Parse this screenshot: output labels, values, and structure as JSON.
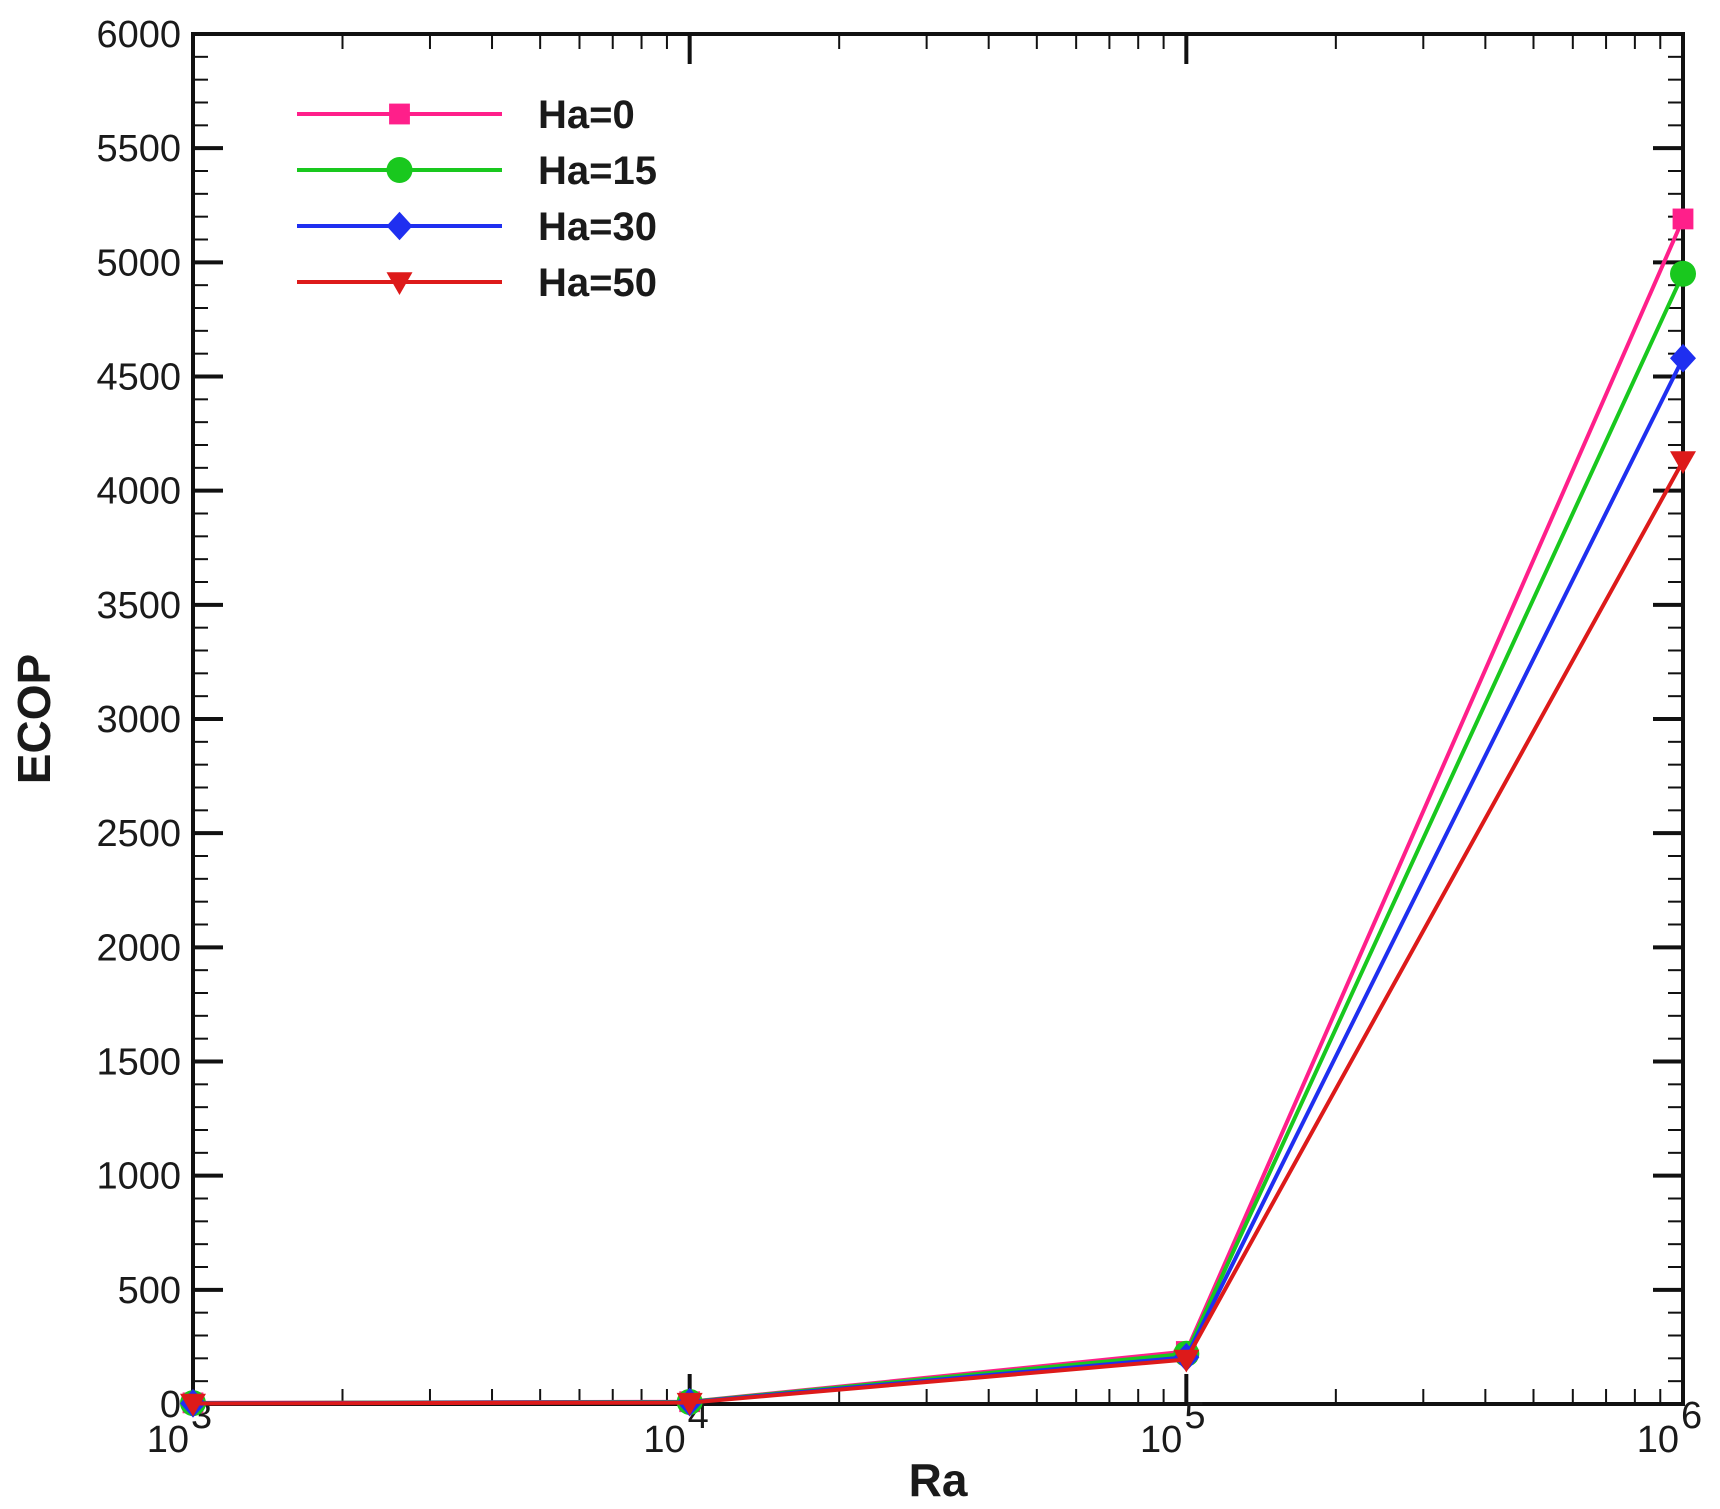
{
  "chart_data": {
    "type": "line",
    "xlabel": "Ra",
    "ylabel": "ECOP",
    "xscale": "log",
    "xlim": [
      1000,
      1000000
    ],
    "ylim": [
      0,
      6000
    ],
    "x": [
      1000,
      10000,
      100000,
      1000000
    ],
    "x_tick_labels": [
      {
        "base": "10",
        "exp": "3"
      },
      {
        "base": "10",
        "exp": "4"
      },
      {
        "base": "10",
        "exp": "5"
      },
      {
        "base": "10",
        "exp": "6"
      }
    ],
    "y_ticks": [
      0,
      500,
      1000,
      1500,
      2000,
      2500,
      3000,
      3500,
      4000,
      4500,
      5000,
      5500,
      6000
    ],
    "grid": false,
    "legend_position": "top-left",
    "series": [
      {
        "name": "Ha=0",
        "color": "#ff1f8a",
        "marker": "square",
        "values": [
          5,
          10,
          230,
          5190
        ]
      },
      {
        "name": "Ha=15",
        "color": "#19c81e",
        "marker": "circle",
        "values": [
          4,
          9,
          220,
          4950
        ]
      },
      {
        "name": "Ha=30",
        "color": "#1f2ff0",
        "marker": "diamond",
        "values": [
          3,
          8,
          205,
          4580
        ]
      },
      {
        "name": "Ha=50",
        "color": "#dd1a1a",
        "marker": "triangle-down",
        "values": [
          2,
          6,
          195,
          4130
        ]
      }
    ]
  }
}
